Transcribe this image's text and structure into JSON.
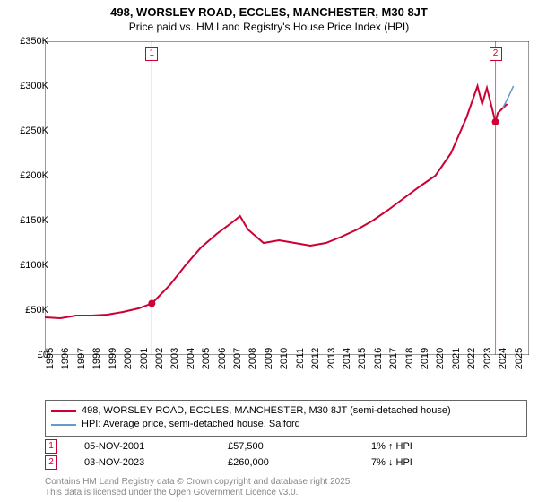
{
  "title": "498, WORSLEY ROAD, ECCLES, MANCHESTER, M30 8JT",
  "subtitle": "Price paid vs. HM Land Registry's House Price Index (HPI)",
  "chart": {
    "type": "line",
    "background_color": "#ffffff",
    "grid_color": "#e0e0e0",
    "ylim": [
      0,
      350000
    ],
    "ytick_step": 50000,
    "ytick_labels": [
      "£0",
      "£50K",
      "£100K",
      "£150K",
      "£200K",
      "£250K",
      "£300K",
      "£350K"
    ],
    "xlim": [
      1995,
      2026
    ],
    "xtick_step": 1,
    "xtick_labels": [
      "1995",
      "1996",
      "1997",
      "1998",
      "1999",
      "2000",
      "2001",
      "2002",
      "2003",
      "2004",
      "2005",
      "2006",
      "2007",
      "2008",
      "2009",
      "2010",
      "2011",
      "2012",
      "2013",
      "2014",
      "2015",
      "2016",
      "2017",
      "2018",
      "2019",
      "2020",
      "2021",
      "2022",
      "2023",
      "2024",
      "2025"
    ],
    "series": [
      {
        "name": "498, WORSLEY ROAD, ECCLES, MANCHESTER, M30 8JT (semi-detached house)",
        "color": "#cc0033",
        "line_width": 2,
        "data": [
          [
            1995,
            42000
          ],
          [
            1996,
            41000
          ],
          [
            1997,
            44000
          ],
          [
            1998,
            44000
          ],
          [
            1999,
            45000
          ],
          [
            2000,
            48000
          ],
          [
            2001,
            52000
          ],
          [
            2001.85,
            57500
          ],
          [
            2002,
            60000
          ],
          [
            2003,
            78000
          ],
          [
            2004,
            100000
          ],
          [
            2005,
            120000
          ],
          [
            2006,
            135000
          ],
          [
            2007,
            148000
          ],
          [
            2007.5,
            155000
          ],
          [
            2008,
            140000
          ],
          [
            2009,
            125000
          ],
          [
            2010,
            128000
          ],
          [
            2011,
            125000
          ],
          [
            2012,
            122000
          ],
          [
            2013,
            125000
          ],
          [
            2014,
            132000
          ],
          [
            2015,
            140000
          ],
          [
            2016,
            150000
          ],
          [
            2017,
            162000
          ],
          [
            2018,
            175000
          ],
          [
            2019,
            188000
          ],
          [
            2020,
            200000
          ],
          [
            2021,
            225000
          ],
          [
            2022,
            265000
          ],
          [
            2022.7,
            300000
          ],
          [
            2023,
            280000
          ],
          [
            2023.3,
            298000
          ],
          [
            2023.85,
            260000
          ],
          [
            2024,
            270000
          ],
          [
            2024.6,
            280000
          ]
        ]
      },
      {
        "name": "HPI: Average price, semi-detached house, Salford",
        "color": "#6699cc",
        "line_width": 1.5,
        "data": [
          [
            2024.3,
            275000
          ],
          [
            2024.6,
            285000
          ],
          [
            2025,
            300000
          ]
        ]
      }
    ],
    "event_markers": [
      {
        "label": "1",
        "x": 2001.85,
        "y": 57500,
        "color": "#cc0033",
        "date": "05-NOV-2001",
        "price": "£57,500",
        "delta": "1% ↑ HPI"
      },
      {
        "label": "2",
        "x": 2023.85,
        "y": 260000,
        "color": "#cc0033",
        "date": "03-NOV-2023",
        "price": "£260,000",
        "delta": "7% ↓ HPI"
      }
    ]
  },
  "legend": {
    "items": [
      {
        "swatch_color": "#cc0033",
        "swatch_height": 3,
        "text": "498, WORSLEY ROAD, ECCLES, MANCHESTER, M30 8JT (semi-detached house)"
      },
      {
        "swatch_color": "#6699cc",
        "swatch_height": 2,
        "text": "HPI: Average price, semi-detached house, Salford"
      }
    ]
  },
  "footer_line1": "Contains HM Land Registry data © Crown copyright and database right 2025.",
  "footer_line2": "This data is licensed under the Open Government Licence v3.0.",
  "title_fontsize": 13,
  "label_fontsize": 11
}
